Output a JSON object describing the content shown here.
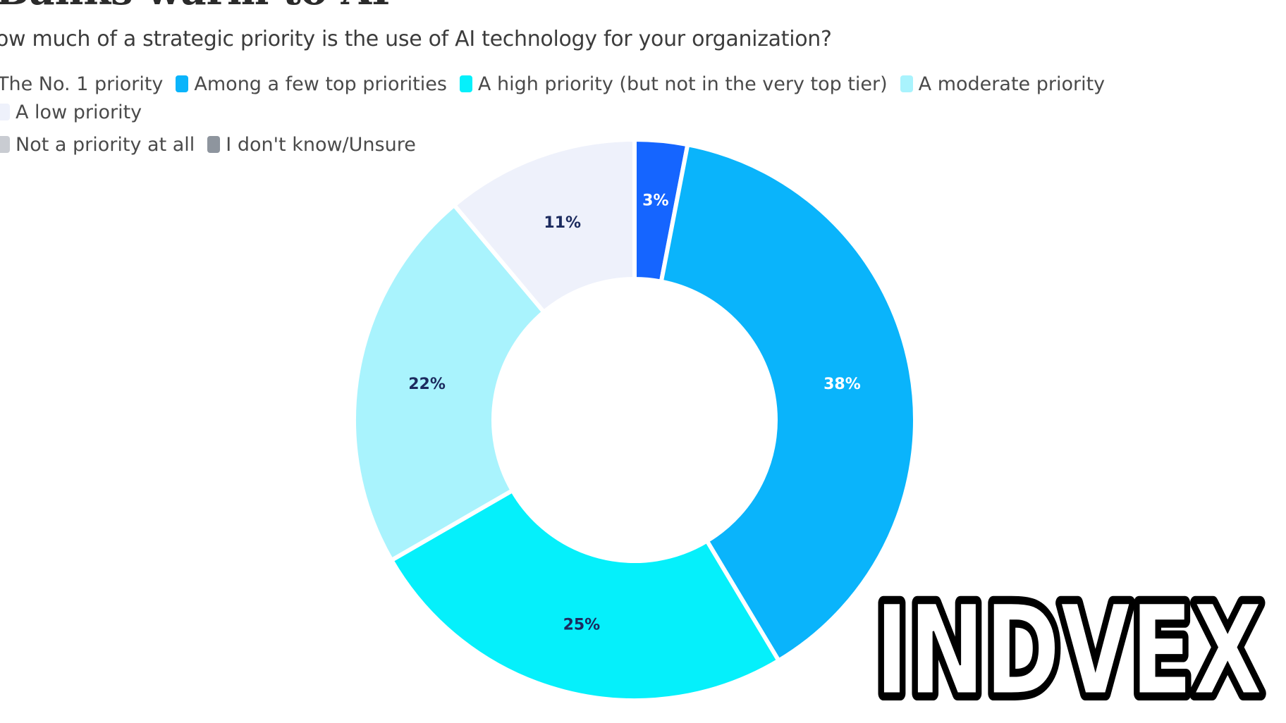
{
  "title": "Banks warm to AI",
  "subtitle": "ow much of a strategic priority is the use of AI technology for your organization?",
  "legend": [
    {
      "label": "The No. 1 priority",
      "color": "#1565ff"
    },
    {
      "label": "Among a few top priorities",
      "color": "#0ab4fb"
    },
    {
      "label": "A high priority (but not in the very top tier)",
      "color": "#05f0fb"
    },
    {
      "label": "A moderate priority",
      "color": "#a9f3fd"
    },
    {
      "label": "A low priority",
      "color": "#eef1fb"
    },
    {
      "label": "Not a priority at all",
      "color": "#c9ccd2"
    },
    {
      "label": "I don't know/Unsure",
      "color": "#8e959e"
    }
  ],
  "chart_data": {
    "type": "pie",
    "donut": true,
    "categories": [
      "The No. 1 priority",
      "Among a few top priorities",
      "A high priority (but not in the very top tier)",
      "A moderate priority",
      "A low priority"
    ],
    "values": [
      3,
      38,
      25,
      22,
      11
    ],
    "value_labels": [
      "3%",
      "38%",
      "25%",
      "22%",
      "11%"
    ],
    "colors": [
      "#1565ff",
      "#0ab4fb",
      "#05f0fb",
      "#a9f3fd",
      "#eef1fb"
    ],
    "label_colors": [
      "#ffffff",
      "#ffffff",
      "#1b2a5e",
      "#1b2a5e",
      "#1b2a5e"
    ],
    "legend_position": "top-left"
  },
  "logo": {
    "text": "INDVEX"
  }
}
